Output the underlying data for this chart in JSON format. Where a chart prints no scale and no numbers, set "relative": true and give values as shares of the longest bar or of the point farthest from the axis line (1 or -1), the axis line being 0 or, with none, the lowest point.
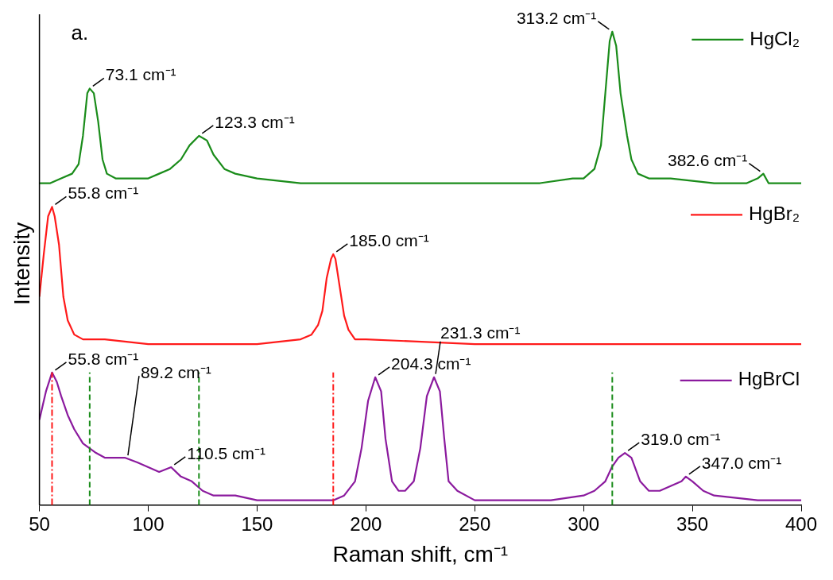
{
  "chart_data": {
    "type": "line",
    "xlabel": "Raman shift, cm⁻¹",
    "ylabel": "Intensity",
    "relative": true,
    "xlim": [
      50,
      400
    ],
    "xticks": [
      50,
      100,
      150,
      200,
      250,
      300,
      350,
      400
    ],
    "grid": false,
    "legend": "top right",
    "marker": "none",
    "line_style": "solid",
    "series": [
      {
        "name": "HgCl₂",
        "color": "#1a8c1a",
        "x": [
          50,
          55,
          60,
          65,
          68,
          70,
          72,
          73.1,
          75,
          77,
          79,
          81,
          85,
          90,
          95,
          100,
          105,
          110,
          115,
          119,
          123.3,
          127,
          130,
          135,
          140,
          150,
          170,
          200,
          250,
          280,
          295,
          300,
          305,
          308,
          310,
          312,
          313.2,
          315,
          317,
          320,
          322,
          325,
          330,
          340,
          360,
          375,
          380,
          382.6,
          385,
          390,
          400
        ],
        "values": [
          0.68,
          0.68,
          0.69,
          0.7,
          0.72,
          0.78,
          0.87,
          0.88,
          0.87,
          0.81,
          0.73,
          0.7,
          0.69,
          0.69,
          0.69,
          0.69,
          0.7,
          0.71,
          0.73,
          0.76,
          0.78,
          0.77,
          0.74,
          0.71,
          0.7,
          0.69,
          0.68,
          0.68,
          0.68,
          0.68,
          0.69,
          0.69,
          0.71,
          0.76,
          0.87,
          0.98,
          1,
          0.97,
          0.87,
          0.78,
          0.73,
          0.7,
          0.69,
          0.69,
          0.68,
          0.68,
          0.69,
          0.7,
          0.68,
          0.68,
          0.68
        ]
      },
      {
        "name": "HgBr₂",
        "color": "#ff1a1a",
        "x": [
          50,
          52,
          54,
          55.8,
          57,
          59,
          61,
          63,
          66,
          70,
          80,
          100,
          150,
          170,
          175,
          178,
          180,
          182,
          184,
          185,
          186,
          188,
          190,
          192,
          195,
          200,
          250,
          300,
          350,
          400
        ],
        "values": [
          0.44,
          0.53,
          0.61,
          0.63,
          0.61,
          0.55,
          0.44,
          0.39,
          0.36,
          0.35,
          0.35,
          0.34,
          0.34,
          0.35,
          0.36,
          0.38,
          0.41,
          0.48,
          0.52,
          0.53,
          0.52,
          0.46,
          0.4,
          0.37,
          0.35,
          0.35,
          0.34,
          0.34,
          0.34,
          0.34
        ]
      },
      {
        "name": "HgBrCl",
        "color": "#8b1a9e",
        "x": [
          50,
          53,
          55.8,
          58,
          60,
          63,
          66,
          70,
          73,
          76,
          80,
          85,
          89.2,
          95,
          100,
          105,
          110.5,
          115,
          120,
          125,
          130,
          140,
          150,
          170,
          180,
          185,
          190,
          195,
          198,
          201,
          204.3,
          207,
          209,
          212,
          215,
          218,
          222,
          225,
          228,
          231.3,
          234,
          236,
          238,
          242,
          250,
          270,
          285,
          300,
          305,
          310,
          313,
          316,
          319,
          322,
          326,
          330,
          335,
          340,
          345,
          347,
          350,
          355,
          360,
          380,
          400
        ],
        "values": [
          0.18,
          0.24,
          0.28,
          0.26,
          0.23,
          0.19,
          0.16,
          0.13,
          0.12,
          0.11,
          0.1,
          0.1,
          0.1,
          0.09,
          0.08,
          0.07,
          0.08,
          0.06,
          0.05,
          0.03,
          0.02,
          0.02,
          0.01,
          0.01,
          0.01,
          0.01,
          0.02,
          0.05,
          0.12,
          0.22,
          0.27,
          0.24,
          0.14,
          0.05,
          0.03,
          0.03,
          0.05,
          0.12,
          0.23,
          0.27,
          0.24,
          0.14,
          0.05,
          0.03,
          0.01,
          0.01,
          0.01,
          0.02,
          0.03,
          0.05,
          0.08,
          0.1,
          0.11,
          0.1,
          0.05,
          0.03,
          0.03,
          0.04,
          0.05,
          0.06,
          0.05,
          0.03,
          0.02,
          0.01,
          0.01
        ]
      }
    ],
    "ref_lines": [
      {
        "axis": "x",
        "value": 55.8,
        "color": "#ff1a1a",
        "line_style": "dashdot"
      },
      {
        "axis": "x",
        "value": 185.0,
        "color": "#ff1a1a",
        "line_style": "dashdot"
      },
      {
        "axis": "x",
        "value": 73.1,
        "color": "#1a8c1a",
        "line_style": "dashed"
      },
      {
        "axis": "x",
        "value": 123.3,
        "color": "#1a8c1a",
        "line_style": "dashed"
      },
      {
        "axis": "x",
        "value": 313.2,
        "color": "#1a8c1a",
        "line_style": "dashed"
      }
    ],
    "annotations": [
      "a.",
      {
        "text": "73.1 cm⁻¹",
        "x": 73.1,
        "y": 0.88
      },
      {
        "text": "123.3 cm⁻¹",
        "x": 123.3,
        "y": 0.78
      },
      {
        "text": "313.2 cm⁻¹",
        "x": 313.2,
        "y": 1
      },
      {
        "text": "382.6 cm⁻¹",
        "x": 382.6,
        "y": 0.7
      },
      {
        "text": "55.8 cm⁻¹",
        "x": 55.8,
        "y": 0.63
      },
      {
        "text": "185.0 cm⁻¹",
        "x": 185.0,
        "y": 0.53
      },
      {
        "text": "55.8 cm⁻¹",
        "x": 55.8,
        "y": 0.28
      },
      {
        "text": "89.2 cm⁻¹",
        "x": 89.2,
        "y": 0.1
      },
      {
        "text": "110.5 cm⁻¹",
        "x": 110.5,
        "y": 0.08
      },
      {
        "text": "204.3 cm⁻¹",
        "x": 204.3,
        "y": 0.27
      },
      {
        "text": "231.3 cm⁻¹",
        "x": 231.3,
        "y": 0.27
      },
      {
        "text": "319.0 cm⁻¹",
        "x": 319.0,
        "y": 0.11
      },
      {
        "text": "347.0 cm⁻¹",
        "x": 347.0,
        "y": 0.06
      }
    ]
  }
}
